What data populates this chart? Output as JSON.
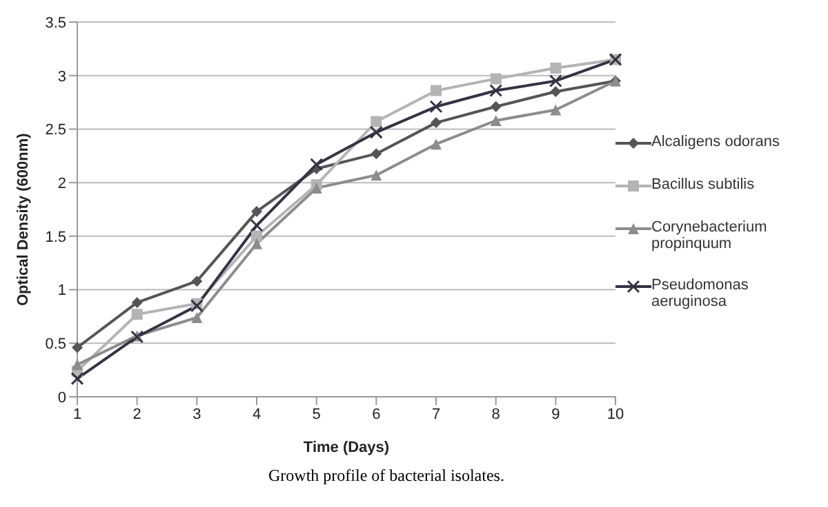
{
  "chart_data": {
    "type": "line",
    "xlabel": "Time (Days)",
    "ylabel": "Optical Density (600nm)",
    "categories": [
      "1",
      "2",
      "3",
      "4",
      "5",
      "6",
      "7",
      "8",
      "9",
      "10"
    ],
    "series": [
      {
        "name": "Alcaligens odorans",
        "color": "#555555",
        "marker": "diamond",
        "values": [
          0.46,
          0.88,
          1.08,
          1.73,
          2.13,
          2.27,
          2.56,
          2.71,
          2.85,
          2.95
        ]
      },
      {
        "name": "Bacillus subtilis",
        "color": "#b4b4b4",
        "marker": "square",
        "values": [
          0.24,
          0.77,
          0.87,
          1.5,
          1.98,
          2.57,
          2.86,
          2.97,
          3.07,
          3.15
        ]
      },
      {
        "name": "Corynebacterium propinquum",
        "color": "#8c8c8c",
        "marker": "triangle",
        "values": [
          0.3,
          0.57,
          0.74,
          1.43,
          1.95,
          2.07,
          2.36,
          2.58,
          2.68,
          2.95
        ]
      },
      {
        "name": "Pseudomonas aeruginosa",
        "color": "#333344",
        "marker": "cross",
        "values": [
          0.17,
          0.56,
          0.85,
          1.6,
          2.17,
          2.47,
          2.71,
          2.86,
          2.95,
          3.15
        ]
      }
    ],
    "ylim": [
      0,
      3.5
    ],
    "yticks": [
      0,
      0.5,
      1,
      1.5,
      2,
      2.5,
      3,
      3.5
    ],
    "grid": "y",
    "legend": "right",
    "line_style": "solid",
    "annotations": [
      "Growth profile of bacterial isolates."
    ]
  }
}
